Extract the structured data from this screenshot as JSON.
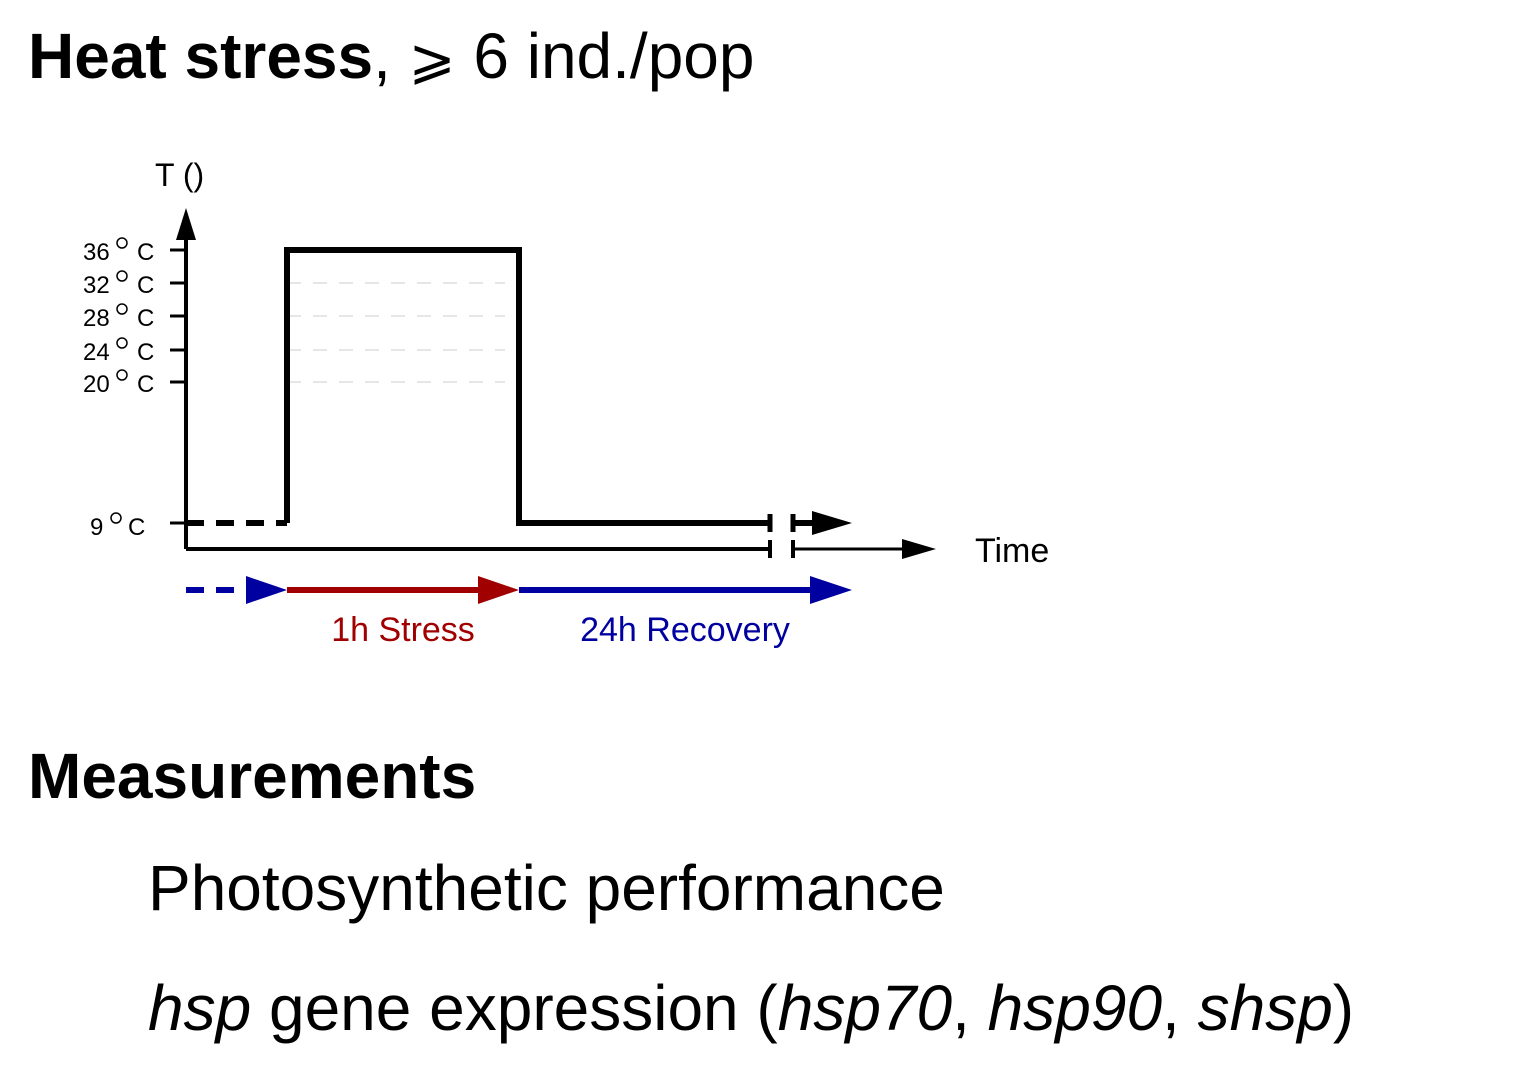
{
  "title": {
    "bold": "Heat stress",
    "comma": ",",
    "geq": "⩾",
    "rest": "6 ind./pop"
  },
  "diagram": {
    "y_axis_label": "T ()",
    "x_axis_label": "Time",
    "temperature_ticks": [
      {
        "num": "36",
        "unit": "C"
      },
      {
        "num": "32",
        "unit": "C"
      },
      {
        "num": "28",
        "unit": "C"
      },
      {
        "num": "24",
        "unit": "C"
      },
      {
        "num": "20",
        "unit": "C"
      },
      {
        "num": "9",
        "unit": "C"
      }
    ],
    "phases": {
      "stress_label": "1h Stress",
      "recovery_label": "24h Recovery"
    },
    "colors": {
      "stress": "#a00000",
      "recovery": "#0000a0",
      "line": "#000000",
      "guide": "#cccccc"
    }
  },
  "measurements": {
    "heading": "Measurements",
    "photosynthesis": "Photosynthetic performance",
    "gene": {
      "hsp": "hsp",
      "text": " gene expression (",
      "g1": "hsp70",
      "sep1": ", ",
      "g2": "hsp90",
      "sep2": ", ",
      "g3": "shsp",
      "close": ")"
    }
  }
}
